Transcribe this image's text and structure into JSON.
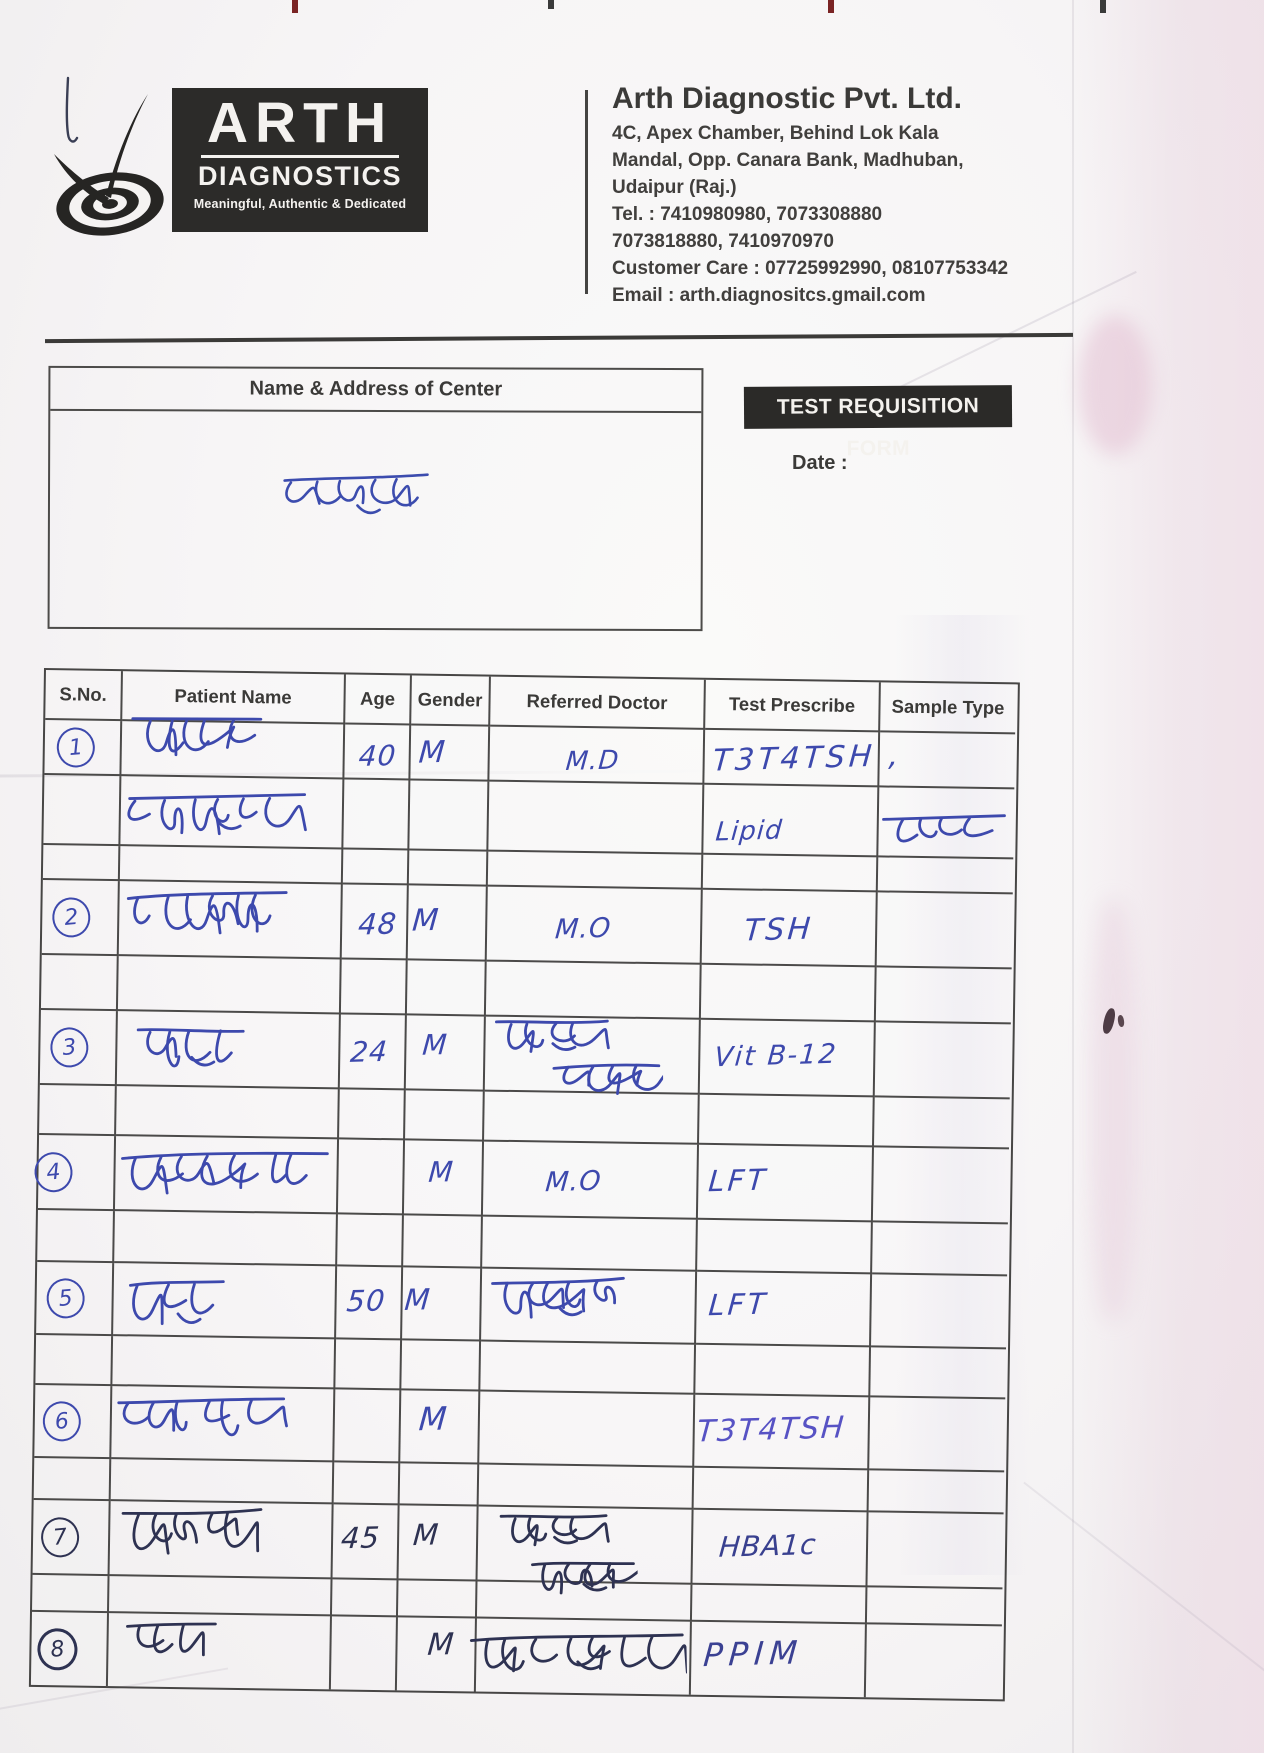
{
  "colors": {
    "ink_blue": "#3d49ad",
    "ink_indigo": "#5752c4",
    "ink_dark": "#2e3252",
    "print_gray": "#3b3a38",
    "bar_bg": "#2b2a28",
    "paper": "#f7f5f6"
  },
  "logo": {
    "name": "ARTH",
    "subname": "DIAGNOSTICS",
    "tagline": "Meaningful, Authentic & Dedicated"
  },
  "company": {
    "name": "Arth Diagnostic Pvt. Ltd.",
    "address1": "4C, Apex Chamber, Behind Lok Kala",
    "address2": "Mandal, Opp. Canara Bank, Madhuban,",
    "address3": "Udaipur (Raj.)",
    "tel1": "Tel. : 7410980980, 7073308880",
    "tel2": "7073818880, 7410970970",
    "customer_care": "Customer Care : 07725992990, 08107753342",
    "email": "Email : arth.diagnositcs.gmail.com"
  },
  "center_box": {
    "title": "Name & Address of Center",
    "handwritten": "भेयर"
  },
  "form": {
    "title": "TEST REQUISITION FORM",
    "date_label": "Date :"
  },
  "table": {
    "columns": [
      "S.No.",
      "Patient Name",
      "Age",
      "Gender",
      "Referred Doctor",
      "Test Prescribe",
      "Sample Type"
    ],
    "entries": [
      {
        "sno": "1",
        "name": {
          "t": "साहबी",
          "s": "dev"
        },
        "name2": {
          "t": "वाडना झी",
          "s": "dev"
        },
        "age": "40",
        "gender": "M",
        "doctor": {
          "t": "M.D",
          "s": "lat"
        },
        "test": {
          "t": "T3T4TSH ,",
          "s": "lat"
        },
        "test2": {
          "t": "Lipid",
          "s": "lat"
        },
        "sample2": {
          "t": "प्रोफाइल",
          "s": "dev"
        }
      },
      {
        "sno": "2",
        "name": {
          "t": "शंभूसिंह",
          "s": "dev"
        },
        "age": "48",
        "gender": "M",
        "doctor": {
          "t": "M.O",
          "s": "lat"
        },
        "test": {
          "t": "TSH",
          "s": "lat"
        }
      },
      {
        "sno": "3",
        "name": {
          "t": "पूजा",
          "s": "dev"
        },
        "age": "24",
        "gender": "M",
        "doctor": {
          "t": "राजीव आमेटा",
          "s": "dev",
          "lines": [
            "राजीव",
            "आमेटा"
          ]
        },
        "test": {
          "t": "Vit B-12",
          "s": "lat"
        }
      },
      {
        "sno": "4",
        "name": {
          "t": "सोरभसिंह का",
          "s": "dev"
        },
        "age": "",
        "gender": "M",
        "doctor": {
          "t": "M.O",
          "s": "lat"
        },
        "test": {
          "t": "LFT",
          "s": "lat"
        }
      },
      {
        "sno": "5",
        "name": {
          "t": "भगु",
          "s": "dev"
        },
        "age": "50",
        "gender": "M",
        "doctor": {
          "t": "शक्षिमसा.",
          "s": "dev"
        },
        "test": {
          "t": "LFT",
          "s": "lat"
        }
      },
      {
        "sno": "6",
        "name": {
          "t": "हिरामसुरी",
          "s": "dev"
        },
        "age": "",
        "gender": "M",
        "doctor": null,
        "test": {
          "t": "T3T4TSH",
          "s": "lat"
        }
      },
      {
        "sno": "7",
        "name": {
          "t": "नियाज",
          "s": "dev"
        },
        "age": "45",
        "gender": "M",
        "doctor": {
          "t": "राजीव अहेटा",
          "s": "dev",
          "lines": [
            "राजीव",
            "अहेटा"
          ]
        },
        "test": {
          "t": "HBA1c",
          "s": "lat"
        }
      },
      {
        "sno": "8",
        "name": {
          "t": "मंजू",
          "s": "dev"
        },
        "age": "",
        "gender": "M",
        "doctor": {
          "t": "मोहन मंघाणि",
          "s": "dev"
        },
        "test": {
          "t": "PPIM",
          "s": "lat"
        }
      }
    ]
  }
}
